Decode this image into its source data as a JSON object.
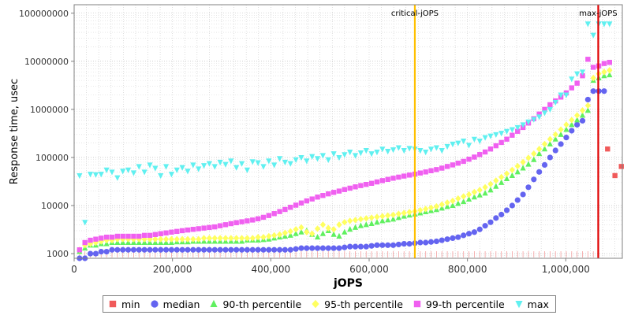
{
  "chart_data": {
    "type": "scatter",
    "xlabel": "jOPS",
    "ylabel": "Response time, usec",
    "x_scale": "linear",
    "y_scale": "log",
    "xlim": [
      0,
      1115000
    ],
    "ylim": [
      800,
      150000000
    ],
    "x_ticks": [
      0,
      200000,
      400000,
      600000,
      800000,
      1000000
    ],
    "x_tick_labels": [
      "0",
      "200,000",
      "400,000",
      "600,000",
      "800,000",
      "1,000,000"
    ],
    "y_ticks": [
      1000,
      10000,
      100000,
      1000000,
      10000000,
      100000000
    ],
    "y_tick_labels": [
      "1000",
      "10000",
      "100000",
      "1000000",
      "10000000",
      "100000000"
    ],
    "grid": true,
    "legend_position": "bottom",
    "reference_lines": [
      {
        "label": "critical-jOPS",
        "x": 693000,
        "color": "#ffc000"
      },
      {
        "label": "max-jOPS",
        "x": 1066000,
        "color": "#e00000"
      }
    ],
    "series": [
      {
        "name": "min",
        "color": "#f05a5a",
        "marker": "square",
        "points": [
          [
            1085000,
            150000
          ],
          [
            1100000,
            42000
          ],
          [
            1113000,
            65000
          ]
        ]
      },
      {
        "name": "median",
        "color": "#6464f0",
        "marker": "circle",
        "x_start": 11000,
        "x_step": 11000,
        "values": [
          800,
          800,
          1000,
          1000,
          1100,
          1100,
          1200,
          1200,
          1200,
          1200,
          1200,
          1200,
          1200,
          1200,
          1200,
          1200,
          1200,
          1200,
          1200,
          1200,
          1200,
          1200,
          1200,
          1200,
          1200,
          1200,
          1200,
          1200,
          1200,
          1200,
          1200,
          1200,
          1200,
          1200,
          1200,
          1200,
          1200,
          1200,
          1200,
          1200,
          1250,
          1300,
          1300,
          1300,
          1300,
          1300,
          1300,
          1300,
          1300,
          1350,
          1400,
          1400,
          1400,
          1400,
          1450,
          1500,
          1500,
          1500,
          1500,
          1550,
          1600,
          1600,
          1650,
          1700,
          1700,
          1750,
          1800,
          1900,
          2000,
          2100,
          2200,
          2400,
          2600,
          2800,
          3200,
          3800,
          4500,
          5500,
          6500,
          8000,
          10000,
          13000,
          17000,
          24000,
          35000,
          50000,
          70000,
          100000,
          140000,
          190000,
          260000,
          360000,
          480000,
          580000,
          1600000,
          2400000,
          2400000,
          2400000
        ]
      },
      {
        "name": "90-th percentile",
        "color": "#60f060",
        "marker": "triangle-up",
        "x_start": 11000,
        "x_step": 11000,
        "values": [
          1100,
          1300,
          1500,
          1500,
          1600,
          1600,
          1700,
          1700,
          1700,
          1700,
          1700,
          1700,
          1700,
          1700,
          1700,
          1700,
          1700,
          1700,
          1750,
          1750,
          1750,
          1800,
          1800,
          1800,
          1800,
          1800,
          1800,
          1800,
          1800,
          1800,
          1800,
          1900,
          1900,
          1900,
          1950,
          2000,
          2100,
          2200,
          2300,
          2400,
          2600,
          2800,
          3000,
          2500,
          2200,
          2600,
          3000,
          2500,
          2300,
          2800,
          3200,
          3500,
          3800,
          4000,
          4200,
          4500,
          4800,
          5000,
          5200,
          5600,
          6000,
          6300,
          6600,
          7000,
          7400,
          7800,
          8200,
          8800,
          9500,
          10000,
          11000,
          12000,
          13500,
          15000,
          16500,
          18000,
          21000,
          25000,
          30000,
          36000,
          42000,
          50000,
          60000,
          72000,
          90000,
          120000,
          150000,
          190000,
          240000,
          300000,
          380000,
          480000,
          600000,
          750000,
          950000,
          4000000,
          4500000,
          5000000,
          5200000
        ]
      },
      {
        "name": "95-th percentile",
        "color": "#ffff60",
        "marker": "diamond",
        "x_start": 11000,
        "x_step": 11000,
        "values": [
          1200,
          1500,
          1600,
          1700,
          1800,
          1900,
          1900,
          2000,
          2000,
          2000,
          2000,
          2000,
          2000,
          2000,
          2000,
          2000,
          2000,
          2000,
          2000,
          2000,
          2000,
          2000,
          2000,
          2100,
          2100,
          2100,
          2100,
          2100,
          2100,
          2100,
          2100,
          2100,
          2100,
          2200,
          2200,
          2300,
          2400,
          2500,
          2700,
          2900,
          3200,
          3500,
          2800,
          2600,
          3300,
          4000,
          3400,
          3200,
          4000,
          4500,
          4800,
          5000,
          5200,
          5400,
          5600,
          5800,
          6000,
          6200,
          6400,
          6700,
          7000,
          7300,
          7600,
          8000,
          8500,
          9000,
          9600,
          10500,
          11500,
          12500,
          14000,
          15500,
          17000,
          19000,
          21000,
          24000,
          28000,
          33000,
          39000,
          46000,
          55000,
          66000,
          80000,
          98000,
          120000,
          150000,
          190000,
          240000,
          300000,
          380000,
          480000,
          600000,
          750000,
          950000,
          1200000,
          4500000,
          5500000,
          6000000,
          6500000
        ]
      },
      {
        "name": "99-th percentile",
        "color": "#f060f0",
        "marker": "square",
        "x_start": 11000,
        "x_step": 11000,
        "values": [
          1200,
          1700,
          1900,
          2000,
          2100,
          2200,
          2200,
          2300,
          2300,
          2300,
          2300,
          2300,
          2400,
          2400,
          2500,
          2600,
          2700,
          2800,
          2900,
          3000,
          3100,
          3200,
          3300,
          3400,
          3500,
          3600,
          3800,
          4000,
          4200,
          4400,
          4600,
          4800,
          5000,
          5300,
          5700,
          6200,
          6800,
          7500,
          8300,
          9200,
          10200,
          11300,
          12500,
          13700,
          15000,
          16200,
          17500,
          18800,
          20000,
          21500,
          23000,
          24500,
          26000,
          27500,
          29000,
          31000,
          33000,
          35000,
          37000,
          39000,
          41000,
          43000,
          45000,
          47500,
          50000,
          53000,
          56000,
          60000,
          65000,
          70000,
          76000,
          83000,
          92000,
          102000,
          115000,
          130000,
          150000,
          175000,
          205000,
          240000,
          290000,
          350000,
          420000,
          520000,
          640000,
          800000,
          1000000,
          1250000,
          1500000,
          1800000,
          2200000,
          2800000,
          3500000,
          5000000,
          11000000,
          7500000,
          8000000,
          9000000,
          9500000
        ]
      },
      {
        "name": "max",
        "color": "#60f0f0",
        "marker": "triangle-down",
        "x_start": 11000,
        "x_step": 11000,
        "values": [
          42000,
          4500,
          45000,
          44000,
          45000,
          55000,
          50000,
          38000,
          52000,
          55000,
          48000,
          65000,
          50000,
          70000,
          60000,
          42000,
          65000,
          45000,
          55000,
          62000,
          52000,
          70000,
          58000,
          68000,
          75000,
          65000,
          80000,
          72000,
          85000,
          62000,
          75000,
          55000,
          82000,
          78000,
          65000,
          85000,
          70000,
          95000,
          80000,
          75000,
          90000,
          100000,
          85000,
          105000,
          95000,
          110000,
          90000,
          120000,
          100000,
          115000,
          130000,
          110000,
          125000,
          140000,
          120000,
          130000,
          150000,
          135000,
          145000,
          160000,
          140000,
          155000,
          150000,
          140000,
          130000,
          150000,
          160000,
          140000,
          170000,
          190000,
          200000,
          220000,
          180000,
          240000,
          220000,
          260000,
          280000,
          300000,
          320000,
          350000,
          380000,
          420000,
          480000,
          550000,
          620000,
          700000,
          850000,
          1000000,
          1400000,
          2000000,
          2000000,
          4300000,
          5500000,
          6000000,
          60000000,
          35000000,
          60000000,
          60000000,
          60000000
        ]
      }
    ]
  }
}
